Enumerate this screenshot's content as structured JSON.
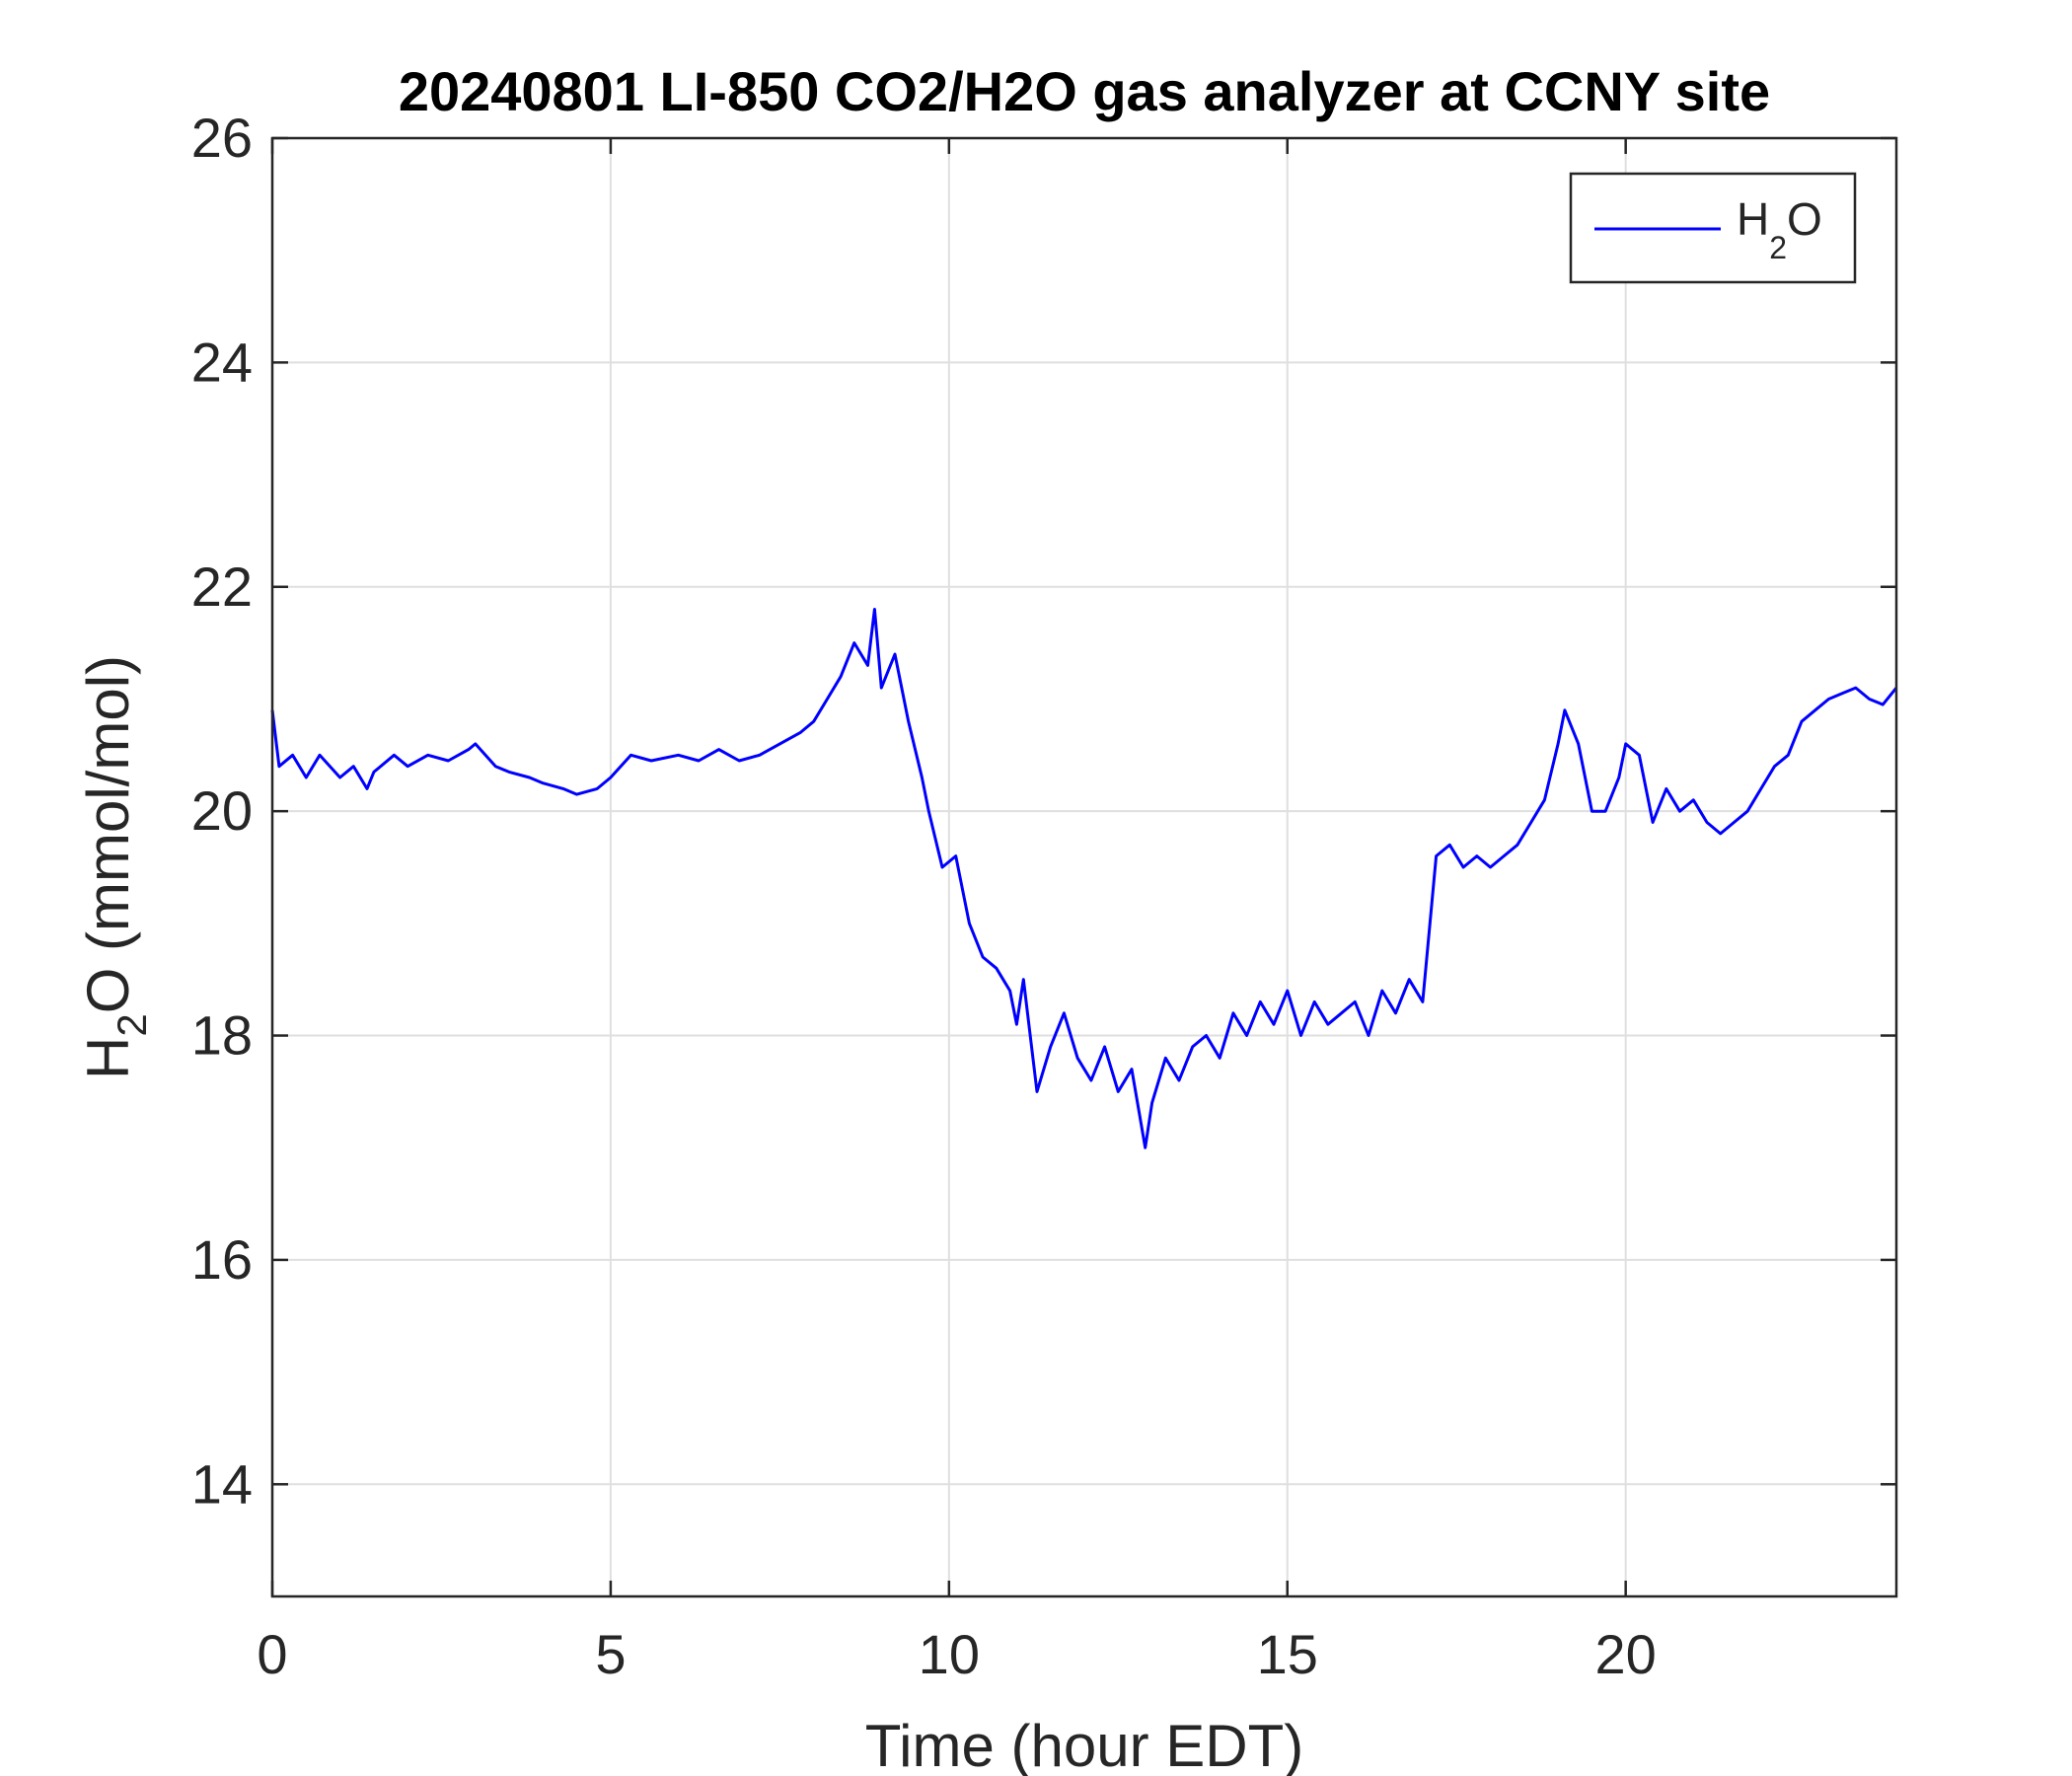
{
  "chart_data": {
    "type": "line",
    "title": "20240801 LI-850 CO2/H2O gas analyzer at CCNY site",
    "xlabel": "Time (hour EDT)",
    "ylabel": {
      "main": "H",
      "sub": "2",
      "rest": "O (mmol/mol)"
    },
    "xlim": [
      0,
      24
    ],
    "ylim": [
      13,
      26
    ],
    "x_ticks": [
      0,
      5,
      10,
      15,
      20
    ],
    "y_ticks": [
      14,
      16,
      18,
      20,
      22,
      24,
      26
    ],
    "grid": true,
    "legend": {
      "position": "top-right"
    },
    "series": [
      {
        "name": {
          "main": "H",
          "sub": "2",
          "rest": "O"
        },
        "color": "#0000ff",
        "x": [
          0,
          0.1,
          0.3,
          0.5,
          0.7,
          1.0,
          1.2,
          1.4,
          1.5,
          1.8,
          2.0,
          2.3,
          2.6,
          2.9,
          3.0,
          3.3,
          3.5,
          3.8,
          4.0,
          4.3,
          4.5,
          4.8,
          5.0,
          5.3,
          5.6,
          6.0,
          6.3,
          6.6,
          6.9,
          7.2,
          7.5,
          7.8,
          8.0,
          8.2,
          8.4,
          8.6,
          8.8,
          8.9,
          9.0,
          9.2,
          9.4,
          9.6,
          9.7,
          9.9,
          10.1,
          10.3,
          10.5,
          10.7,
          10.9,
          11.0,
          11.1,
          11.3,
          11.5,
          11.7,
          11.9,
          12.1,
          12.3,
          12.5,
          12.7,
          12.9,
          13.0,
          13.2,
          13.4,
          13.6,
          13.8,
          14.0,
          14.2,
          14.4,
          14.6,
          14.8,
          15.0,
          15.2,
          15.4,
          15.6,
          15.8,
          16.0,
          16.2,
          16.4,
          16.6,
          16.8,
          17.0,
          17.2,
          17.4,
          17.6,
          17.8,
          18.0,
          18.2,
          18.4,
          18.6,
          18.8,
          19.0,
          19.1,
          19.3,
          19.5,
          19.7,
          19.9,
          20.0,
          20.2,
          20.4,
          20.6,
          20.8,
          21.0,
          21.2,
          21.4,
          21.6,
          21.8,
          22.0,
          22.2,
          22.4,
          22.6,
          22.8,
          23.0,
          23.2,
          23.4,
          23.6,
          23.8,
          24.0
        ],
        "y": [
          20.9,
          20.4,
          20.5,
          20.3,
          20.5,
          20.3,
          20.4,
          20.2,
          20.35,
          20.5,
          20.4,
          20.5,
          20.45,
          20.55,
          20.6,
          20.4,
          20.35,
          20.3,
          20.25,
          20.2,
          20.15,
          20.2,
          20.3,
          20.5,
          20.45,
          20.5,
          20.45,
          20.55,
          20.45,
          20.5,
          20.6,
          20.7,
          20.8,
          21.0,
          21.2,
          21.5,
          21.3,
          21.8,
          21.1,
          21.4,
          20.8,
          20.3,
          20.0,
          19.5,
          19.6,
          19.0,
          18.7,
          18.6,
          18.4,
          18.1,
          18.5,
          17.5,
          17.9,
          18.2,
          17.8,
          17.6,
          17.9,
          17.5,
          17.7,
          17.0,
          17.4,
          17.8,
          17.6,
          17.9,
          18.0,
          17.8,
          18.2,
          18.0,
          18.3,
          18.1,
          18.4,
          18.0,
          18.3,
          18.1,
          18.2,
          18.3,
          18.0,
          18.4,
          18.2,
          18.5,
          18.3,
          19.6,
          19.7,
          19.5,
          19.6,
          19.5,
          19.6,
          19.7,
          19.9,
          20.1,
          20.6,
          20.9,
          20.6,
          20.0,
          20.0,
          20.3,
          20.6,
          20.5,
          19.9,
          20.2,
          20.0,
          20.1,
          19.9,
          19.8,
          19.9,
          20.0,
          20.2,
          20.4,
          20.5,
          20.8,
          20.9,
          21.0,
          21.05,
          21.1,
          21.0,
          20.95,
          21.1
        ]
      }
    ]
  }
}
